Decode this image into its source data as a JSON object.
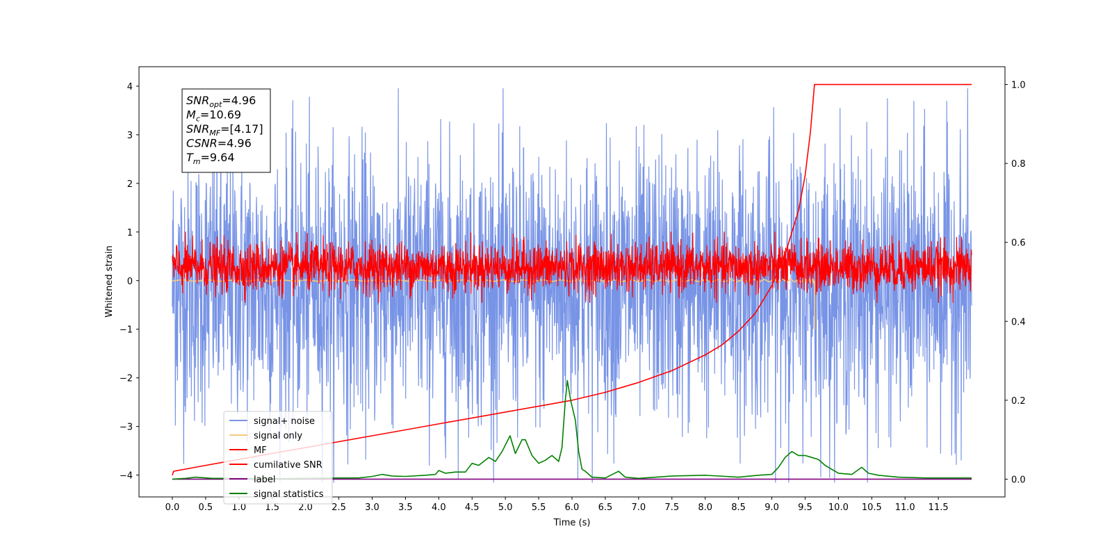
{
  "chart_data": {
    "type": "line",
    "xlabel": "Time (s)",
    "ylabel": "Whitened strain",
    "xlim": [
      -0.5,
      12.5
    ],
    "ylim": [
      -4.45,
      4.4
    ],
    "y2lim": [
      -0.045,
      1.045
    ],
    "xticks": [
      0.0,
      0.5,
      1.0,
      1.5,
      2.0,
      2.5,
      3.0,
      3.5,
      4.0,
      4.5,
      5.0,
      5.5,
      6.0,
      6.5,
      7.0,
      7.5,
      8.0,
      8.5,
      9.0,
      9.5,
      10.0,
      10.5,
      11.0,
      11.5
    ],
    "xtick_labels": [
      "0.0",
      "0.5",
      "1.0",
      "1.5",
      "2.0",
      "2.5",
      "3.0",
      "3.5",
      "4.0",
      "4.5",
      "5.0",
      "5.5",
      "6.0",
      "6.5",
      "7.0",
      "7.5",
      "8.0",
      "8.5",
      "9.0",
      "9.5",
      "10.0",
      "10.5",
      "11.0",
      "11.5"
    ],
    "yticks": [
      -4,
      -3,
      -2,
      -1,
      0,
      1,
      2,
      3,
      4
    ],
    "ytick_labels": [
      "−4",
      "−3",
      "−2",
      "−1",
      "0",
      "1",
      "2",
      "3",
      "4"
    ],
    "y2ticks": [
      0.0,
      0.2,
      0.4,
      0.6,
      0.8,
      1.0
    ],
    "y2tick_labels": [
      "0.0",
      "0.2",
      "0.4",
      "0.6",
      "0.8",
      "1.0"
    ],
    "grid": false,
    "legend_position": "bottom-left",
    "annotation": [
      {
        "sym": "SNR",
        "sub": "opt",
        "rest": "=4.96"
      },
      {
        "sym": "M",
        "sub": "c",
        "rest": "=10.69"
      },
      {
        "sym": "SNR",
        "sub": "MF",
        "rest": "=[4.17]"
      },
      {
        "sym": "CSNR",
        "sub": "",
        "rest": "=4.96"
      },
      {
        "sym": "T",
        "sub": "m",
        "rest": "=9.64"
      }
    ],
    "series": [
      {
        "name": "signal+ noise",
        "color": "#7894e6",
        "axis": "left",
        "kind": "noise",
        "x_range": [
          0.0,
          12.0
        ],
        "envelope": [
          -4.15,
          3.95
        ]
      },
      {
        "name": "signal only",
        "color": "#f7c97e",
        "axis": "left",
        "kind": "chirp",
        "x_range": [
          0.0,
          9.64
        ],
        "envelope": [
          -1.0,
          0.45
        ]
      },
      {
        "name": "MF",
        "color": "#ff0000",
        "axis": "left",
        "kind": "noise",
        "x_range": [
          0.0,
          12.0
        ],
        "envelope": [
          -0.45,
          1.0
        ]
      },
      {
        "name": "cumilative SNR",
        "color": "#ff0000",
        "axis": "right",
        "x": [
          0.0,
          0.02,
          0.5,
          1.0,
          1.5,
          2.0,
          2.5,
          3.0,
          3.5,
          4.0,
          4.5,
          5.0,
          5.5,
          6.0,
          6.5,
          7.0,
          7.5,
          8.0,
          8.25,
          8.5,
          8.75,
          9.0,
          9.2,
          9.4,
          9.5,
          9.58,
          9.62,
          9.64,
          12.0
        ],
        "y": [
          0.01,
          0.02,
          0.035,
          0.05,
          0.065,
          0.08,
          0.095,
          0.11,
          0.125,
          0.14,
          0.155,
          0.17,
          0.185,
          0.2,
          0.22,
          0.245,
          0.275,
          0.315,
          0.34,
          0.375,
          0.42,
          0.49,
          0.57,
          0.68,
          0.77,
          0.88,
          0.96,
          1.0,
          1.0
        ]
      },
      {
        "name": "label",
        "color": "#800080",
        "axis": "right",
        "x": [
          0.0,
          12.0
        ],
        "y": [
          0.0,
          0.0
        ]
      },
      {
        "name": "signal statistics",
        "color": "#008000",
        "axis": "right",
        "x": [
          0.0,
          0.2,
          0.35,
          0.6,
          1.0,
          1.5,
          2.0,
          2.5,
          2.8,
          3.0,
          3.15,
          3.3,
          3.5,
          3.8,
          3.95,
          4.0,
          4.1,
          4.25,
          4.4,
          4.5,
          4.6,
          4.75,
          4.85,
          4.95,
          5.07,
          5.15,
          5.25,
          5.3,
          5.4,
          5.5,
          5.6,
          5.7,
          5.8,
          5.85,
          5.9,
          5.93,
          5.98,
          6.05,
          6.1,
          6.15,
          6.2,
          6.3,
          6.5,
          6.7,
          6.8,
          7.0,
          7.5,
          8.0,
          8.5,
          8.8,
          9.0,
          9.1,
          9.2,
          9.3,
          9.4,
          9.5,
          9.6,
          9.7,
          9.8,
          10.0,
          10.2,
          10.35,
          10.45,
          10.6,
          10.9,
          11.3,
          12.0
        ],
        "y": [
          0.0,
          0.002,
          0.005,
          0.002,
          0.002,
          0.001,
          0.002,
          0.003,
          0.003,
          0.007,
          0.012,
          0.008,
          0.007,
          0.01,
          0.012,
          0.022,
          0.015,
          0.018,
          0.018,
          0.04,
          0.035,
          0.055,
          0.045,
          0.07,
          0.11,
          0.065,
          0.1,
          0.1,
          0.06,
          0.04,
          0.048,
          0.06,
          0.045,
          0.08,
          0.2,
          0.25,
          0.2,
          0.15,
          0.07,
          0.025,
          0.02,
          0.005,
          0.003,
          0.02,
          0.005,
          0.002,
          0.008,
          0.01,
          0.005,
          0.01,
          0.012,
          0.03,
          0.055,
          0.07,
          0.06,
          0.06,
          0.055,
          0.05,
          0.035,
          0.015,
          0.012,
          0.03,
          0.015,
          0.01,
          0.005,
          0.003,
          0.003
        ]
      }
    ]
  }
}
